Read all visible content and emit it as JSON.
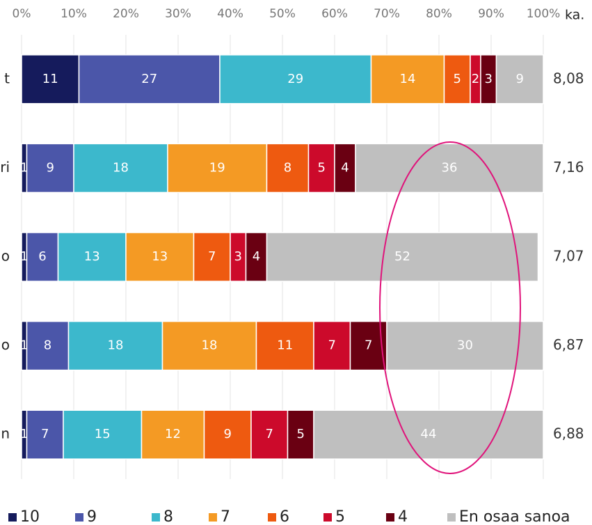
{
  "chart_data": {
    "type": "stacked-bar-horizontal",
    "categories": [
      "t",
      "ri",
      "o",
      "o",
      "n"
    ],
    "series": [
      {
        "name": "10",
        "color": "#151b5c",
        "values": [
          11,
          1,
          1,
          1,
          1
        ]
      },
      {
        "name": "9",
        "color": "#4b56a9",
        "values": [
          27,
          9,
          6,
          8,
          7
        ]
      },
      {
        "name": "8",
        "color": "#3cb8cc",
        "values": [
          29,
          18,
          13,
          18,
          15
        ]
      },
      {
        "name": "7",
        "color": "#f49a24",
        "values": [
          14,
          19,
          13,
          18,
          12
        ]
      },
      {
        "name": "6",
        "color": "#ee5a10",
        "values": [
          5,
          8,
          7,
          11,
          9
        ]
      },
      {
        "name": "5",
        "color": "#cc0a2b",
        "values": [
          2,
          5,
          3,
          7,
          7
        ]
      },
      {
        "name": "4",
        "color": "#6a0012",
        "values": [
          3,
          4,
          4,
          7,
          5
        ]
      },
      {
        "name": "En osaa sanoa",
        "color": "#bfbfbf",
        "values": [
          9,
          36,
          52,
          30,
          44
        ]
      }
    ],
    "xlim": [
      0,
      100
    ],
    "xticks": [
      {
        "value": 0,
        "label": "0%"
      },
      {
        "value": 10,
        "label": "10%"
      },
      {
        "value": 20,
        "label": "20%"
      },
      {
        "value": 30,
        "label": "30%"
      },
      {
        "value": 40,
        "label": "40%"
      },
      {
        "value": 50,
        "label": "50%"
      },
      {
        "value": 60,
        "label": "60%"
      },
      {
        "value": 70,
        "label": "70%"
      },
      {
        "value": 80,
        "label": "80%"
      },
      {
        "value": 90,
        "label": "90%"
      },
      {
        "value": 100,
        "label": "100%"
      }
    ],
    "average_header": "ka.",
    "averages": [
      "8,08",
      "7,16",
      "7,07",
      "6,87",
      "6,88"
    ],
    "grid": true
  }
}
